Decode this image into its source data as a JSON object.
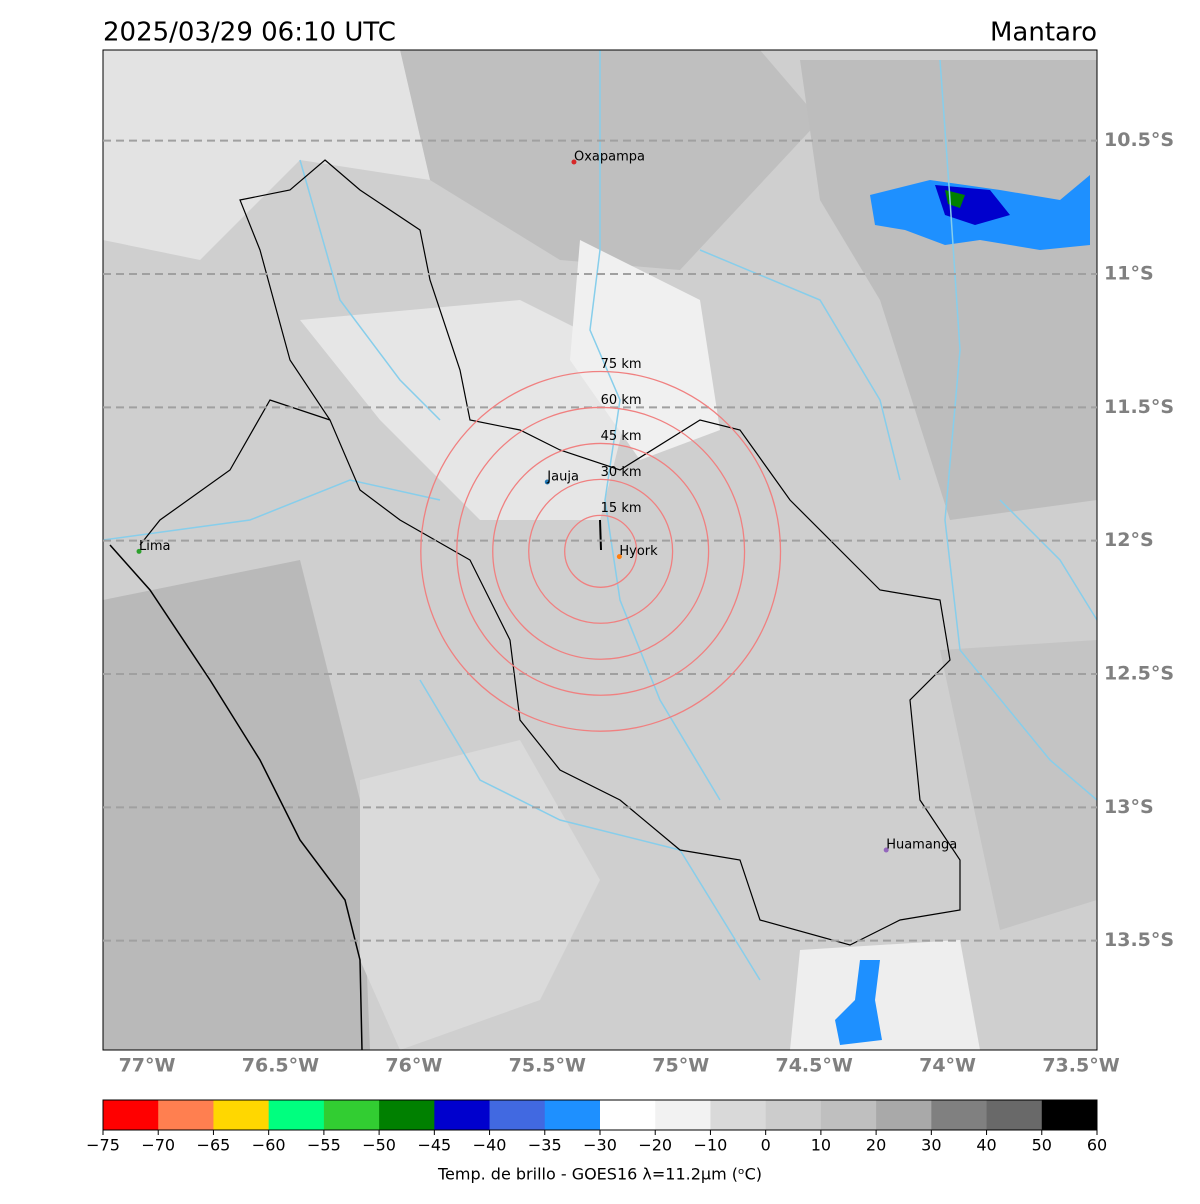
{
  "map": {
    "title": "2025/03/29 06:10 UTC",
    "region": "Mantaro",
    "lon_range": [
      -77.165,
      -73.44
    ],
    "lat_range": [
      -10.16,
      -13.91
    ],
    "lat_ticks": [
      {
        "value": -10.5,
        "label": "10.5°S"
      },
      {
        "value": -11,
        "label": "11°S"
      },
      {
        "value": -11.5,
        "label": "11.5°S"
      },
      {
        "value": -12,
        "label": "12°S"
      },
      {
        "value": -12.5,
        "label": "12.5°S"
      },
      {
        "value": -13,
        "label": "13°S"
      },
      {
        "value": -13.5,
        "label": "13.5°S"
      }
    ],
    "lon_ticks": [
      {
        "value": -77,
        "label": "77°W"
      },
      {
        "value": -76.5,
        "label": "76.5°W"
      },
      {
        "value": -76,
        "label": "76°W"
      },
      {
        "value": -75.5,
        "label": "75.5°W"
      },
      {
        "value": -75,
        "label": "75°W"
      },
      {
        "value": -74.5,
        "label": "74.5°W"
      },
      {
        "value": -74,
        "label": "74°W"
      },
      {
        "value": -73.5,
        "label": "73.5°W"
      }
    ],
    "cities": [
      {
        "name": "Oxapampa",
        "lon": -75.4,
        "lat": -10.58,
        "color": "#d62728"
      },
      {
        "name": "Jauja",
        "lon": -75.5,
        "lat": -11.78,
        "color": "#1f77b4"
      },
      {
        "name": "Hyork",
        "lon": -75.23,
        "lat": -12.06,
        "color": "#ff7f0e"
      },
      {
        "name": "Lima",
        "lon": -77.03,
        "lat": -12.04,
        "color": "#2ca02c"
      },
      {
        "name": "Huamanga",
        "lon": -74.23,
        "lat": -13.16,
        "color": "#9467bd"
      }
    ],
    "rings": {
      "center_lon": -75.3,
      "center_lat": -12.04,
      "color": "#f08080",
      "radii": [
        {
          "value": 15,
          "label": "15 km"
        },
        {
          "value": 30,
          "label": "30 km"
        },
        {
          "value": 45,
          "label": "45 km"
        },
        {
          "value": 60,
          "label": "60 km"
        },
        {
          "value": 75,
          "label": "75 km"
        }
      ]
    },
    "colorbar": {
      "label": "Temp. de brillo - GOES16 λ=11.2μm (ᵒC)",
      "colors": [
        "#ff0000",
        "#ff7f50",
        "#ffd700",
        "#00ff7f",
        "#32cd32",
        "#008000",
        "#0000cd",
        "#4169e1",
        "#1e90ff",
        "#ffffff",
        "#f2f2f2",
        "#d9d9d9",
        "#cccccc",
        "#bfbfbf",
        "#a9a9a9",
        "#808080",
        "#696969",
        "#000000"
      ],
      "ticks": [
        {
          "value": -75,
          "label": "−75"
        },
        {
          "value": -70,
          "label": "−70"
        },
        {
          "value": -65,
          "label": "−65"
        },
        {
          "value": -60,
          "label": "−60"
        },
        {
          "value": -55,
          "label": "−55"
        },
        {
          "value": -50,
          "label": "−50"
        },
        {
          "value": -45,
          "label": "−45"
        },
        {
          "value": -40,
          "label": "−40"
        },
        {
          "value": -35,
          "label": "−35"
        },
        {
          "value": -30,
          "label": "−30"
        },
        {
          "value": -20,
          "label": "−20"
        },
        {
          "value": -10,
          "label": "−10"
        },
        0,
        10,
        20,
        30,
        40,
        50,
        60
      ]
    }
  }
}
